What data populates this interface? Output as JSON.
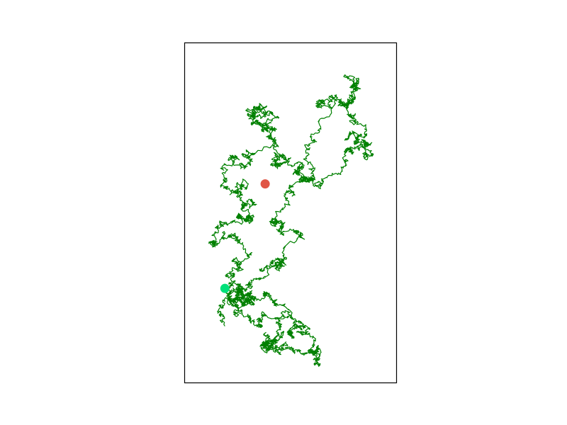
{
  "chart_data": {
    "type": "line",
    "description_note": "",
    "title": "",
    "xlabel": "",
    "ylabel": "",
    "axes_visible": false,
    "grid": false,
    "legend": "none",
    "series": [
      {
        "color": "#008000",
        "seed": 7,
        "steps": 5000,
        "waypoints": [
          [
            0.19,
            -0.05
          ],
          [
            0.4,
            0.42
          ],
          [
            0.55,
            0.7
          ],
          [
            0.5,
            1.03
          ],
          [
            0.69,
            1.7
          ],
          [
            0.8,
            1.92
          ],
          [
            0.78,
            1.63
          ],
          [
            0.85,
            1.3
          ],
          [
            0.62,
            1.05
          ],
          [
            0.43,
            1.22
          ],
          [
            0.37,
            1.5
          ],
          [
            0.32,
            1.65
          ],
          [
            0.33,
            1.3
          ],
          [
            0.23,
            1.0
          ],
          [
            0.3,
            0.8
          ],
          [
            0.15,
            0.6
          ],
          [
            0.25,
            0.4
          ],
          [
            0.3,
            0.18
          ],
          [
            0.5,
            0.03
          ],
          [
            0.38,
            -0.2
          ],
          [
            0.52,
            -0.28
          ],
          [
            0.58,
            -0.1
          ],
          [
            0.38,
            0.03
          ],
          [
            0.24,
            0.18
          ],
          [
            0.19,
            0.25
          ]
        ]
      }
    ],
    "start_point": {
      "color": "#00e07a",
      "x": 0.19,
      "y": 0.25
    },
    "end_point": {
      "color": "#e05545",
      "x": 0.38,
      "y": 1.08
    },
    "xlim": [
      0.0,
      1.0
    ],
    "ylim": [
      -0.5,
      2.2
    ]
  }
}
